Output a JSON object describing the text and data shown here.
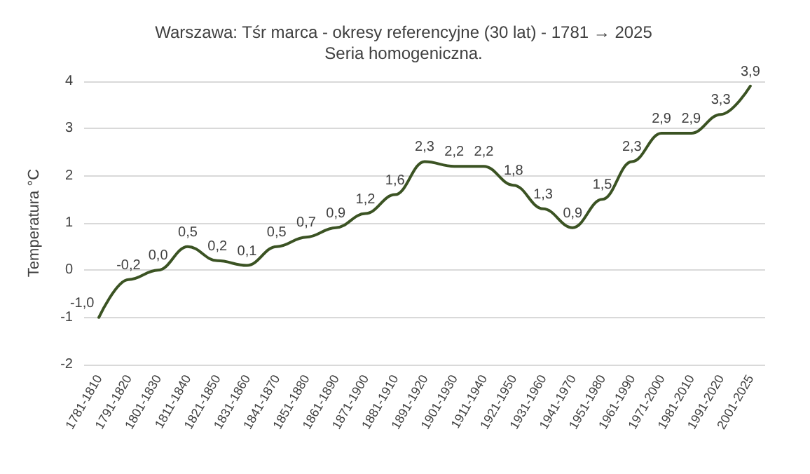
{
  "chart_data": {
    "type": "line",
    "title": "Warszawa: Tśr marca - okresy referencyjne (30 lat) - 1781 → 2025",
    "subtitle": "Seria homogeniczna.",
    "ylabel": "Temperatura °C",
    "categories": [
      "1781-1810",
      "1791-1820",
      "1801-1830",
      "1811-1840",
      "1821-1850",
      "1831-1860",
      "1841-1870",
      "1851-1880",
      "1861-1890",
      "1871-1900",
      "1881-1910",
      "1891-1920",
      "1901-1930",
      "1911-1940",
      "1921-1950",
      "1931-1960",
      "1941-1970",
      "1951-1980",
      "1961-1990",
      "1971-2000",
      "1981-2010",
      "1991-2020",
      "2001-2025"
    ],
    "series": [
      {
        "color": "#3b5323",
        "values": [
          -1.0,
          -0.2,
          0.0,
          0.5,
          0.2,
          0.1,
          0.5,
          0.7,
          0.9,
          1.2,
          1.6,
          2.3,
          2.2,
          2.2,
          1.8,
          1.3,
          0.9,
          1.5,
          2.3,
          2.9,
          2.9,
          3.3,
          3.9
        ],
        "value_labels": [
          "-1,0",
          "-0,2",
          "0,0",
          "0,5",
          "0,2",
          "0,1",
          "0,5",
          "0,7",
          "0,9",
          "1,2",
          "1,6",
          "2,3",
          "2,2",
          "2,2",
          "1,8",
          "1,3",
          "0,9",
          "1,5",
          "2,3",
          "2,9",
          "2,9",
          "3,3",
          "3,9"
        ]
      }
    ],
    "ylim": [
      -2,
      4
    ],
    "yticks": [
      -2,
      -1,
      0,
      1,
      2,
      3,
      4
    ],
    "grid": "y",
    "marker": "none",
    "line_style": "solid"
  }
}
